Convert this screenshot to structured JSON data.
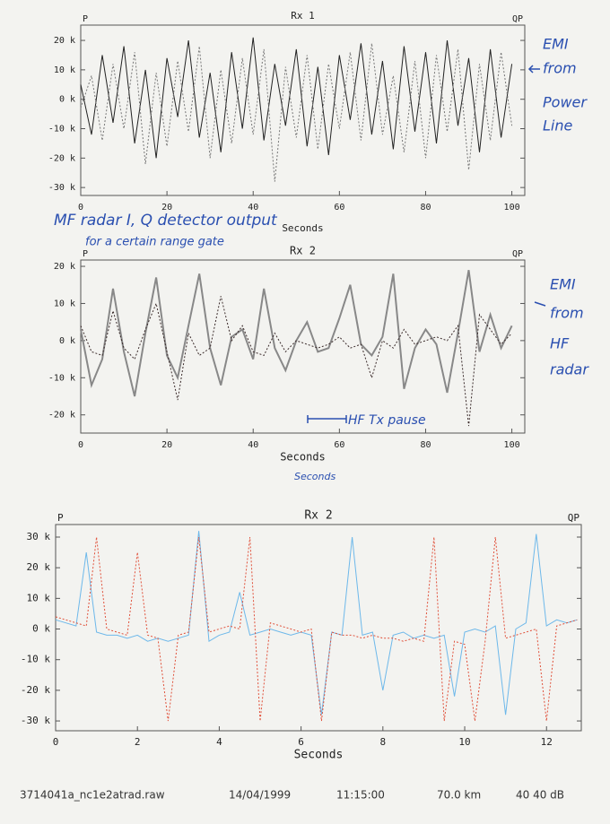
{
  "chart_data": [
    {
      "type": "line",
      "title": "Rx 1",
      "x_label": "Seconds",
      "x": [
        0,
        2.5,
        5,
        7.5,
        10,
        12.5,
        15,
        17.5,
        20,
        22.5,
        25,
        27.5,
        30,
        32.5,
        35,
        37.5,
        40,
        42.5,
        45,
        47.5,
        50,
        52.5,
        55,
        57.5,
        60,
        62.5,
        65,
        67.5,
        70,
        72.5,
        75,
        77.5,
        80,
        82.5,
        85,
        87.5,
        90,
        92.5,
        95,
        97.5,
        100
      ],
      "series": [
        {
          "name": "P",
          "color": "#222222",
          "values": [
            5000,
            -12000,
            15000,
            -8000,
            18000,
            -15000,
            10000,
            -20000,
            14000,
            -6000,
            20000,
            -13000,
            9000,
            -18000,
            16000,
            -10000,
            21000,
            -14000,
            12000,
            -9000,
            17000,
            -16000,
            11000,
            -19000,
            15000,
            -7000,
            19000,
            -12000,
            13000,
            -17000,
            18000,
            -11000,
            16000,
            -15000,
            20000,
            -9000,
            14000,
            -18000,
            17000,
            -13000,
            12000
          ]
        },
        {
          "name": "QP",
          "color": "#777777",
          "values": [
            -3000,
            8000,
            -14000,
            12000,
            -10000,
            16000,
            -22000,
            9000,
            -16000,
            13000,
            -11000,
            18000,
            -20000,
            10000,
            -15000,
            14000,
            -12000,
            17000,
            -28000,
            11000,
            -13000,
            15000,
            -17000,
            12000,
            -10000,
            16000,
            -14000,
            19000,
            -12000,
            8000,
            -18000,
            13000,
            -20000,
            15000,
            -11000,
            17000,
            -24000,
            12000,
            -14000,
            16000,
            -9000
          ]
        }
      ],
      "xlim": [
        0,
        103
      ],
      "xticks": [
        0,
        20,
        40,
        60,
        80,
        100
      ],
      "ylim": [
        -32700,
        25200
      ],
      "yticks": [
        {
          "value": -30000,
          "label": "-30 k"
        },
        {
          "value": -20000,
          "label": "-20 k"
        },
        {
          "value": -10000,
          "label": "-10 k"
        },
        {
          "value": 0,
          "label": "0 k"
        },
        {
          "value": 10000,
          "label": "10 k"
        },
        {
          "value": 20000,
          "label": "20 k"
        }
      ],
      "annotations": [
        "EMI",
        "from",
        "Power",
        "Line",
        "MF radar I, Q detector output",
        "for a certain range gate"
      ]
    },
    {
      "type": "line",
      "title": "Rx 2",
      "x_label": "Seconds",
      "x": [
        0,
        2.5,
        5,
        7.5,
        10,
        12.5,
        15,
        17.5,
        20,
        22.5,
        25,
        27.5,
        30,
        32.5,
        35,
        37.5,
        40,
        42.5,
        45,
        47.5,
        50,
        52.5,
        55,
        57.5,
        60,
        62.5,
        65,
        67.5,
        70,
        72.5,
        75,
        77.5,
        80,
        82.5,
        85,
        87.5,
        90,
        92.5,
        95,
        97.5,
        100
      ],
      "series": [
        {
          "name": "P",
          "color": "#888888",
          "values": [
            3000,
            -12000,
            -5000,
            14000,
            -3000,
            -15000,
            2000,
            17000,
            -4000,
            -10000,
            4000,
            18000,
            -2000,
            -12000,
            1000,
            3000,
            -5000,
            14000,
            -2000,
            -8000,
            0,
            5000,
            -3000,
            -2000,
            6000,
            15000,
            -1000,
            -4000,
            1000,
            18000,
            -13000,
            -2000,
            3000,
            -1000,
            -14000,
            2000,
            19000,
            -3000,
            7000,
            -2000,
            4000
          ]
        },
        {
          "name": "QP",
          "color": "#3a2a2a",
          "values": [
            4000,
            -3000,
            -4000,
            8000,
            -2000,
            -5000,
            3000,
            10000,
            -3000,
            -16000,
            2000,
            -4000,
            -2000,
            12000,
            0,
            4000,
            -3000,
            -4000,
            2000,
            -3000,
            0,
            -1000,
            -2000,
            -1000,
            1000,
            -2000,
            -1000,
            -10000,
            0,
            -2000,
            3000,
            -1000,
            0,
            1000,
            0,
            4000,
            -23000,
            7000,
            3000,
            -1000,
            2000
          ]
        }
      ],
      "xlim": [
        0,
        103
      ],
      "xticks": [
        0,
        20,
        40,
        60,
        80,
        100
      ],
      "ylim": [
        -24900,
        21700
      ],
      "yticks": [
        {
          "value": -20000,
          "label": "-20 k"
        },
        {
          "value": -10000,
          "label": "-10 k"
        },
        {
          "value": 0,
          "label": "0 k"
        },
        {
          "value": 10000,
          "label": "10 k"
        },
        {
          "value": 20000,
          "label": "20 k"
        }
      ],
      "annotations": [
        "EMI",
        "from",
        "HF",
        "radar",
        "HF Tx pause",
        "Seconds"
      ]
    },
    {
      "type": "line",
      "title": "Rx 2",
      "x_label": "Seconds",
      "x": [
        0,
        0.25,
        0.5,
        0.75,
        1,
        1.25,
        1.5,
        1.75,
        2,
        2.25,
        2.5,
        2.75,
        3,
        3.25,
        3.5,
        3.75,
        4,
        4.25,
        4.5,
        4.75,
        5,
        5.25,
        5.5,
        5.75,
        6,
        6.25,
        6.5,
        6.75,
        7,
        7.25,
        7.5,
        7.75,
        8,
        8.25,
        8.5,
        8.75,
        9,
        9.25,
        9.5,
        9.75,
        10,
        10.25,
        10.5,
        10.75,
        11,
        11.25,
        11.5,
        11.75,
        12,
        12.25,
        12.5,
        12.75
      ],
      "series": [
        {
          "name": "P",
          "color": "#6db8ea",
          "values": [
            3000,
            2000,
            1000,
            25000,
            -1000,
            -2000,
            -2000,
            -3000,
            -2000,
            -4000,
            -3000,
            -4000,
            -3000,
            -2000,
            32000,
            -4000,
            -2000,
            -1000,
            12000,
            -2000,
            -1000,
            0,
            -1000,
            -2000,
            -1000,
            -2000,
            -28000,
            -1000,
            -2000,
            30000,
            -2000,
            -1000,
            -20000,
            -2000,
            -1000,
            -3000,
            -2000,
            -3000,
            -2000,
            -22000,
            -1000,
            0,
            -1000,
            1000,
            -28000,
            0,
            2000,
            31000,
            1000,
            3000,
            2000,
            3000
          ]
        },
        {
          "name": "QP",
          "color": "#e0503a",
          "values": [
            4000,
            3000,
            2000,
            1000,
            30000,
            0,
            -1000,
            -2000,
            25000,
            -2000,
            -3000,
            -30000,
            -2000,
            -1000,
            30000,
            -1000,
            0,
            1000,
            0,
            30000,
            -30000,
            2000,
            1000,
            0,
            -1000,
            0,
            -30000,
            -1000,
            -2000,
            -2000,
            -3000,
            -2000,
            -3000,
            -3000,
            -4000,
            -3000,
            -4000,
            30000,
            -30000,
            -4000,
            -5000,
            -30000,
            -4000,
            30000,
            -3000,
            -2000,
            -1000,
            0,
            -30000,
            1000,
            2000,
            3000
          ]
        }
      ],
      "xlim": [
        0,
        12.85
      ],
      "xticks": [
        0,
        2,
        4,
        6,
        8,
        10,
        12
      ],
      "ylim": [
        -33200,
        34100
      ],
      "yticks": [
        {
          "value": -30000,
          "label": "-30 k"
        },
        {
          "value": -20000,
          "label": "-20 k"
        },
        {
          "value": -10000,
          "label": "-10 k"
        },
        {
          "value": 0,
          "label": "0 k"
        },
        {
          "value": 10000,
          "label": "10 k"
        },
        {
          "value": 20000,
          "label": "20 k"
        },
        {
          "value": 30000,
          "label": "30 k"
        }
      ]
    }
  ],
  "footer": {
    "file": "3714041a_nc1e2atrad.raw",
    "date": "14/04/1999",
    "time": "11:15:00",
    "range": "70.0 km",
    "gain": "40 40 dB"
  }
}
